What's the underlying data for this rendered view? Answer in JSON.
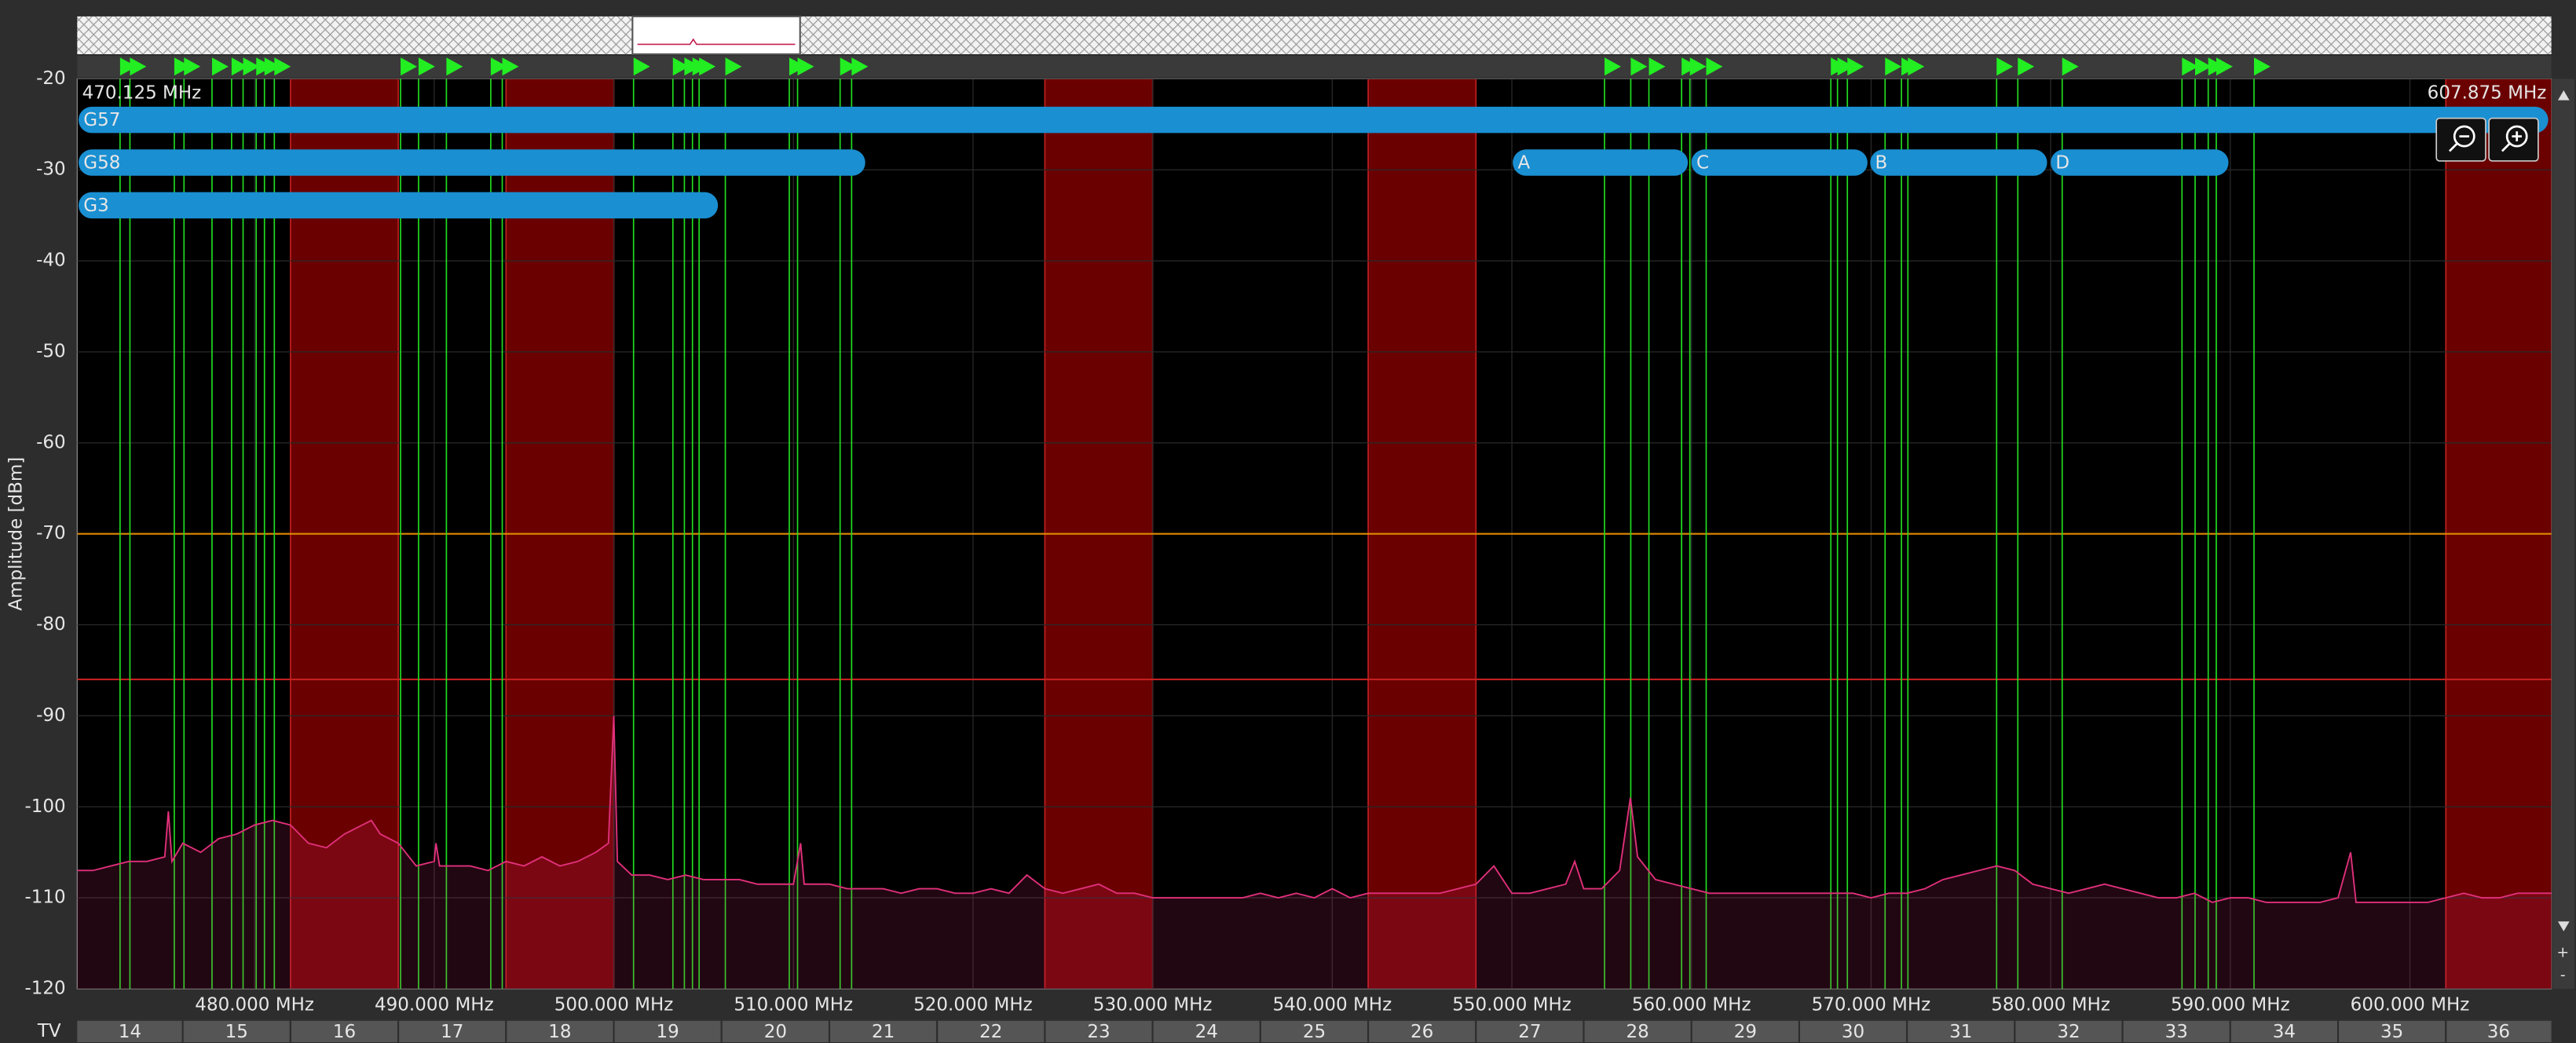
{
  "chart_data": {
    "type": "line",
    "y_label": "Amplitude [dBm]",
    "xlim": [
      470.125,
      607.875
    ],
    "range_labels": [
      "470.125 MHz",
      "607.875 MHz"
    ],
    "ylim": [
      -120,
      -20
    ],
    "yticks": [
      -20,
      -30,
      -40,
      -50,
      -60,
      -70,
      -80,
      -90,
      -100,
      -110,
      -120
    ],
    "xticks": [
      {
        "value": 480,
        "label": "480.000 MHz"
      },
      {
        "value": 490,
        "label": "490.000 MHz"
      },
      {
        "value": 500,
        "label": "500.000 MHz"
      },
      {
        "value": 510,
        "label": "510.000 MHz"
      },
      {
        "value": 520,
        "label": "520.000 MHz"
      },
      {
        "value": 530,
        "label": "530.000 MHz"
      },
      {
        "value": 540,
        "label": "540.000 MHz"
      },
      {
        "value": 550,
        "label": "550.000 MHz"
      },
      {
        "value": 560,
        "label": "560.000 MHz"
      },
      {
        "value": 570,
        "label": "570.000 MHz"
      },
      {
        "value": 580,
        "label": "580.000 MHz"
      },
      {
        "value": 590,
        "label": "590.000 MHz"
      },
      {
        "value": 600,
        "label": "600.000 MHz"
      }
    ],
    "grid": true,
    "color": "#e0307a",
    "x": [
      470.125,
      471,
      472,
      473,
      474,
      475,
      475.2,
      475.4,
      476,
      477,
      478,
      479,
      480,
      481,
      482,
      483,
      484,
      485,
      486,
      486.5,
      487,
      488,
      489,
      490,
      490.1,
      490.3,
      491,
      492,
      493,
      494,
      495,
      496,
      497,
      498,
      499,
      499.7,
      500,
      500.2,
      501,
      502,
      503,
      504,
      505,
      506,
      507,
      508,
      509,
      510,
      510.4,
      510.6,
      511,
      512,
      513,
      514,
      515,
      516,
      517,
      518,
      519,
      520,
      521,
      522,
      523,
      524,
      525,
      526,
      527,
      528,
      529,
      530,
      531,
      532,
      533,
      534,
      535,
      536,
      537,
      538,
      539,
      540,
      541,
      542,
      543,
      544,
      545,
      546,
      547,
      548,
      549,
      550,
      551,
      552,
      553,
      553.5,
      554,
      555,
      556,
      556.6,
      557,
      558,
      559,
      560,
      561,
      562,
      563,
      564,
      565,
      566,
      567,
      568,
      569,
      570,
      571,
      572,
      573,
      574,
      575,
      576,
      577,
      578,
      579,
      580,
      581,
      582,
      583,
      584,
      585,
      586,
      587,
      588,
      589,
      590,
      591,
      592,
      593,
      594,
      595,
      596,
      596.7,
      597,
      598,
      599,
      600,
      601,
      602,
      603,
      604,
      605,
      606,
      607,
      607.875
    ],
    "values": [
      -107,
      -107,
      -106.5,
      -106,
      -106,
      -105.5,
      -100.5,
      -106,
      -104,
      -105,
      -103.5,
      -103,
      -102,
      -101.5,
      -102,
      -104,
      -104.5,
      -103,
      -102,
      -101.5,
      -103,
      -104,
      -106.5,
      -106,
      -104,
      -106.5,
      -106.5,
      -106.5,
      -107,
      -106,
      -106.5,
      -105.5,
      -106.5,
      -106,
      -105,
      -104,
      -90,
      -106,
      -107.5,
      -107.5,
      -108,
      -107.5,
      -108,
      -108,
      -108,
      -108.5,
      -108.5,
      -108.5,
      -104,
      -108.5,
      -108.5,
      -108.5,
      -109,
      -109,
      -109,
      -109.5,
      -109,
      -109,
      -109.5,
      -109.5,
      -109,
      -109.5,
      -107.5,
      -109,
      -109.5,
      -109,
      -108.5,
      -109.5,
      -109.5,
      -110,
      -110,
      -110,
      -110,
      -110,
      -110,
      -109.5,
      -110,
      -109.5,
      -110,
      -109,
      -110,
      -109.5,
      -109.5,
      -109.5,
      -109.5,
      -109.5,
      -109,
      -108.5,
      -106.5,
      -109.5,
      -109.5,
      -109,
      -108.5,
      -106,
      -109,
      -109,
      -107,
      -99,
      -105.5,
      -108,
      -108.5,
      -109,
      -109.5,
      -109.5,
      -109.5,
      -109.5,
      -109.5,
      -109.5,
      -109.5,
      -109.5,
      -109.5,
      -110,
      -109.5,
      -109.5,
      -109,
      -108,
      -107.5,
      -107,
      -106.5,
      -107,
      -108.5,
      -109,
      -109.5,
      -109,
      -108.5,
      -109,
      -109.5,
      -110,
      -110,
      -109.5,
      -110.5,
      -110,
      -110,
      -110.5,
      -110.5,
      -110.5,
      -110.5,
      -110,
      -105,
      -110.5,
      -110.5,
      -110.5,
      -110.5,
      -110.5,
      -110,
      -109.5,
      -110,
      -110,
      -109.5,
      -109.5,
      -109.5
    ],
    "thresholds": [
      {
        "value": -70,
        "color": "#e08a00"
      },
      {
        "value": -86,
        "color": "#c42020"
      }
    ],
    "exclusion_bands": [
      {
        "start": 482,
        "end": 488
      },
      {
        "start": 494,
        "end": 500
      },
      {
        "start": 524,
        "end": 530
      },
      {
        "start": 542,
        "end": 548
      },
      {
        "start": 602,
        "end": 608
      }
    ],
    "markers": [
      472.51,
      473.06,
      475.53,
      476.07,
      477.63,
      478.72,
      479.36,
      480.09,
      480.55,
      481.1,
      488.13,
      489.13,
      490.68,
      493.15,
      493.79,
      501.1,
      503.29,
      503.93,
      504.38,
      504.75,
      506.21,
      509.77,
      510.23,
      512.6,
      513.24,
      555.16,
      556.62,
      557.63,
      559.45,
      559.91,
      560.82,
      567.76,
      568.13,
      568.68,
      570.78,
      571.69,
      572.05,
      576.99,
      578.17,
      580.64,
      587.31,
      588.04,
      588.77,
      589.22,
      591.32
    ],
    "groups": [
      {
        "name": "G57",
        "start": 470.2,
        "end": 607.7,
        "row": 0
      },
      {
        "name": "G58",
        "start": 470.2,
        "end": 514,
        "row": 1
      },
      {
        "name": "G3",
        "start": 470.2,
        "end": 505.8,
        "row": 2
      },
      {
        "name": "A",
        "start": 550.05,
        "end": 559.8,
        "row": 1
      },
      {
        "name": "C",
        "start": 560,
        "end": 569.8,
        "row": 1
      },
      {
        "name": "B",
        "start": 569.95,
        "end": 579.8,
        "row": 1
      },
      {
        "name": "D",
        "start": 580,
        "end": 589.9,
        "row": 1
      }
    ],
    "tv_label": "TV",
    "tv_channels": [
      {
        "label": "14",
        "start": 470,
        "end": 476
      },
      {
        "label": "15",
        "start": 476,
        "end": 482
      },
      {
        "label": "16",
        "start": 482,
        "end": 488
      },
      {
        "label": "17",
        "start": 488,
        "end": 494
      },
      {
        "label": "18",
        "start": 494,
        "end": 500
      },
      {
        "label": "19",
        "start": 500,
        "end": 506
      },
      {
        "label": "20",
        "start": 506,
        "end": 512
      },
      {
        "label": "21",
        "start": 512,
        "end": 518
      },
      {
        "label": "22",
        "start": 518,
        "end": 524
      },
      {
        "label": "23",
        "start": 524,
        "end": 530
      },
      {
        "label": "24",
        "start": 530,
        "end": 536
      },
      {
        "label": "25",
        "start": 536,
        "end": 542
      },
      {
        "label": "26",
        "start": 542,
        "end": 548
      },
      {
        "label": "27",
        "start": 548,
        "end": 554
      },
      {
        "label": "28",
        "start": 554,
        "end": 560
      },
      {
        "label": "29",
        "start": 560,
        "end": 566
      },
      {
        "label": "30",
        "start": 566,
        "end": 572
      },
      {
        "label": "31",
        "start": 572,
        "end": 578
      },
      {
        "label": "32",
        "start": 578,
        "end": 584
      },
      {
        "label": "33",
        "start": 584,
        "end": 590
      },
      {
        "label": "34",
        "start": 590,
        "end": 596
      },
      {
        "label": "35",
        "start": 596,
        "end": 602
      },
      {
        "label": "36",
        "start": 602,
        "end": 608
      }
    ]
  }
}
